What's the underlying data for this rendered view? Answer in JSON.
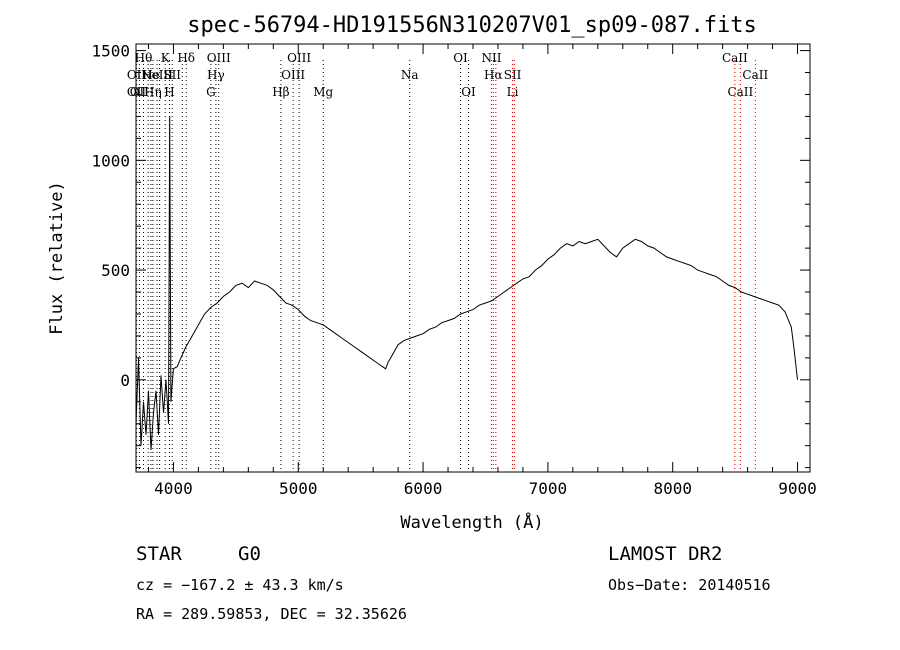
{
  "chart_data": {
    "type": "line",
    "title": "spec-56794-HD191556N310207V01_sp09-087.fits",
    "xlabel": "Wavelength (Å)",
    "ylabel": "Flux (relative)",
    "xlim": [
      3700,
      9100
    ],
    "ylim": [
      -420,
      1530
    ],
    "xticks": [
      4000,
      5000,
      6000,
      7000,
      8000,
      9000
    ],
    "yticks": [
      0,
      500,
      1000,
      1500
    ],
    "grid": false,
    "legend": "none",
    "series": [
      {
        "x": [
          3700,
          3720,
          3740,
          3760,
          3780,
          3800,
          3820,
          3840,
          3860,
          3880,
          3900,
          3920,
          3940,
          3960,
          3970,
          3980,
          4000,
          4030,
          4060,
          4100,
          4150,
          4200,
          4250,
          4300,
          4350,
          4400,
          4450,
          4500,
          4550,
          4600,
          4650,
          4700,
          4750,
          4800,
          4850,
          4900,
          4950,
          5000,
          5050,
          5100,
          5150,
          5200,
          5250,
          5300,
          5350,
          5400,
          5450,
          5500,
          5550,
          5600,
          5650,
          5700,
          5720,
          5750,
          5800,
          5850,
          5900,
          5950,
          6000,
          6050,
          6100,
          6150,
          6200,
          6250,
          6300,
          6350,
          6400,
          6450,
          6500,
          6550,
          6600,
          6650,
          6700,
          6750,
          6800,
          6850,
          6900,
          6950,
          7000,
          7050,
          7100,
          7150,
          7200,
          7250,
          7300,
          7350,
          7400,
          7450,
          7500,
          7550,
          7600,
          7650,
          7700,
          7750,
          7800,
          7850,
          7900,
          7950,
          8000,
          8050,
          8100,
          8150,
          8200,
          8250,
          8300,
          8350,
          8400,
          8450,
          8500,
          8550,
          8600,
          8650,
          8700,
          8750,
          8800,
          8850,
          8900,
          8950,
          8970,
          8990,
          9000
        ],
        "y": [
          -200,
          100,
          -300,
          -100,
          -250,
          -50,
          -320,
          -150,
          -50,
          -250,
          20,
          -150,
          0,
          -200,
          1200,
          -100,
          50,
          60,
          100,
          150,
          200,
          250,
          300,
          330,
          350,
          380,
          400,
          430,
          440,
          420,
          450,
          440,
          430,
          410,
          380,
          350,
          340,
          320,
          290,
          270,
          260,
          250,
          230,
          210,
          190,
          170,
          150,
          130,
          110,
          90,
          70,
          50,
          80,
          110,
          160,
          180,
          190,
          200,
          210,
          230,
          240,
          260,
          270,
          280,
          300,
          310,
          320,
          340,
          350,
          360,
          380,
          400,
          420,
          440,
          460,
          470,
          500,
          520,
          550,
          570,
          600,
          620,
          610,
          630,
          620,
          630,
          640,
          610,
          580,
          560,
          600,
          620,
          640,
          630,
          610,
          600,
          580,
          560,
          550,
          540,
          530,
          520,
          500,
          490,
          480,
          470,
          450,
          430,
          420,
          400,
          390,
          380,
          370,
          360,
          350,
          340,
          310,
          240,
          150,
          50,
          0
        ]
      }
    ],
    "lines": [
      {
        "x": 3704,
        "color": "#000000",
        "labels": [
          "",
          "OII",
          "OII"
        ]
      },
      {
        "x": 3727,
        "color": "#000000",
        "labels": [
          "",
          "",
          "OII"
        ]
      },
      {
        "x": 3760,
        "color": "#000000",
        "labels": [
          "Hθ",
          "",
          ""
        ]
      },
      {
        "x": 3797,
        "color": "#000000",
        "labels": [
          "",
          "",
          ""
        ]
      },
      {
        "x": 3820,
        "color": "#000000",
        "labels": [
          "",
          "He",
          ""
        ]
      },
      {
        "x": 3835,
        "color": "#000000",
        "labels": [
          "",
          "",
          "Hη"
        ]
      },
      {
        "x": 3869,
        "color": "#000000",
        "labels": [
          "",
          "NeIII",
          ""
        ]
      },
      {
        "x": 3889,
        "color": "#000000",
        "labels": [
          "",
          "",
          ""
        ]
      },
      {
        "x": 3934,
        "color": "#000000",
        "labels": [
          "K",
          "",
          ""
        ]
      },
      {
        "x": 3968,
        "color": "#000000",
        "labels": [
          "",
          "",
          "H"
        ]
      },
      {
        "x": 3990,
        "color": "#000000",
        "labels": [
          "",
          "SII",
          ""
        ]
      },
      {
        "x": 4071,
        "color": "#000000",
        "labels": [
          "",
          "",
          ""
        ]
      },
      {
        "x": 4102,
        "color": "#000000",
        "labels": [
          "Hδ",
          "",
          ""
        ]
      },
      {
        "x": 4300,
        "color": "#000000",
        "labels": [
          "",
          "",
          "G"
        ]
      },
      {
        "x": 4340,
        "color": "#000000",
        "labels": [
          "",
          "Hγ",
          ""
        ]
      },
      {
        "x": 4363,
        "color": "#000000",
        "labels": [
          "OIII",
          "",
          ""
        ]
      },
      {
        "x": 4861,
        "color": "#000000",
        "labels": [
          "",
          "",
          "Hβ"
        ]
      },
      {
        "x": 4959,
        "color": "#000000",
        "labels": [
          "",
          "OIII",
          ""
        ]
      },
      {
        "x": 5007,
        "color": "#000000",
        "labels": [
          "OIII",
          "",
          ""
        ]
      },
      {
        "x": 5200,
        "color": "#000000",
        "labels": [
          "",
          "",
          "Mg"
        ]
      },
      {
        "x": 5893,
        "color": "#000000",
        "labels": [
          "",
          "Na",
          ""
        ]
      },
      {
        "x": 6300,
        "color": "#000000",
        "labels": [
          "OI",
          "",
          ""
        ]
      },
      {
        "x": 6364,
        "color": "#000000",
        "labels": [
          "",
          "",
          "OI"
        ]
      },
      {
        "x": 6548,
        "color": "#cc0000",
        "labels": [
          "NII",
          "",
          ""
        ]
      },
      {
        "x": 6563,
        "color": "#cc0000",
        "labels": [
          "",
          "Hα",
          ""
        ]
      },
      {
        "x": 6583,
        "color": "#cc0000",
        "labels": [
          "",
          "",
          ""
        ]
      },
      {
        "x": 6717,
        "color": "#cc0000",
        "labels": [
          "",
          "SII",
          "Li"
        ]
      },
      {
        "x": 6731,
        "color": "#cc0000",
        "labels": [
          "",
          "",
          ""
        ]
      },
      {
        "x": 8498,
        "color": "#cc0000",
        "labels": [
          "CaII",
          "",
          ""
        ]
      },
      {
        "x": 8542,
        "color": "#cc0000",
        "labels": [
          "",
          "",
          "CaII"
        ]
      },
      {
        "x": 8662,
        "color": "#cc0000",
        "labels": [
          "",
          "CaII",
          ""
        ]
      }
    ]
  },
  "footer": {
    "object_type": "STAR",
    "subclass": "G0",
    "survey": "LAMOST DR2",
    "cz": "cz = −167.2 ± 43.3 km/s",
    "obs_date": "Obs−Date: 20140516",
    "coords": "RA = 289.59853, DEC =  32.35626"
  }
}
